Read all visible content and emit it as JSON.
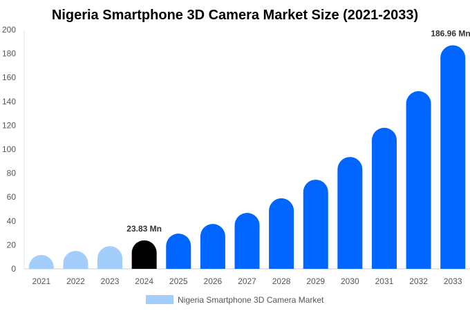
{
  "chart_data": {
    "type": "bar",
    "title": "Nigeria Smartphone 3D Camera Market Size (2021-2033)",
    "categories": [
      "2021",
      "2022",
      "2023",
      "2024",
      "2025",
      "2026",
      "2027",
      "2028",
      "2029",
      "2030",
      "2031",
      "2032",
      "2033"
    ],
    "series": [
      {
        "name": "Nigeria Smartphone 3D Camera Market",
        "values": [
          11.6,
          15.0,
          19.0,
          23.83,
          29.5,
          37.6,
          46.8,
          59.0,
          74.6,
          93.6,
          118.0,
          148.6,
          186.96
        ]
      }
    ],
    "data_labels": [
      {
        "category": "2024",
        "text": "23.83 Mn"
      },
      {
        "category": "2033",
        "text": "186.96 Mn"
      }
    ],
    "ylim": [
      0,
      200
    ],
    "yticks": [
      0,
      20,
      40,
      60,
      80,
      100,
      120,
      140,
      160,
      180,
      200
    ],
    "grid": false,
    "legend": "bottom",
    "colors": {
      "historic": "#a3cdfb",
      "base_year": "#000000",
      "forecast": "#0066ff"
    },
    "base_year": "2024"
  }
}
